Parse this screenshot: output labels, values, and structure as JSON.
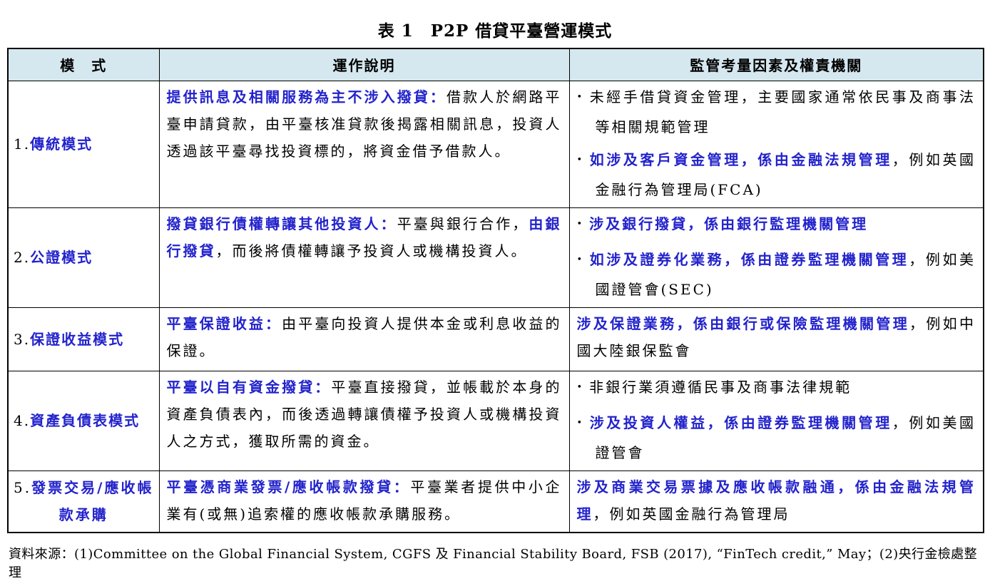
{
  "title": "表 1　P2P 借貸平臺營運模式",
  "bullet_char": "•",
  "colors": {
    "accent_blue": "#2323cc",
    "header_bg": "#d6e8ef",
    "border": "#000000"
  },
  "table": {
    "headers": [
      "模　式",
      "運作說明",
      "監管考量因素及權責機關"
    ],
    "rows": [
      {
        "model_prefix": "1.",
        "model_name": "傳統模式",
        "desc": [
          {
            "t": "提供訊息及相關服務為主不涉入撥貸：",
            "b": true
          },
          {
            "t": "借款人於網路平臺申請貸款，由平臺核准貸款後揭露相關訊息，投資人透過該平臺尋找投資標的，將資金借予借款人。",
            "b": false
          }
        ],
        "reg": [
          {
            "bullet": true,
            "segments": [
              {
                "t": "未經手借貸資金管理，主要國家通常依民事及商事法等相關規範管理",
                "b": false
              }
            ]
          },
          {
            "bullet": true,
            "segments": [
              {
                "t": "如涉及客戶資金管理，係由金融法規管理",
                "b": true
              },
              {
                "t": "，例如英國金融行為管理局(FCA)",
                "b": false
              }
            ]
          }
        ]
      },
      {
        "model_prefix": "2.",
        "model_name": "公證模式",
        "desc": [
          {
            "t": "撥貸銀行債權轉讓其他投資人：",
            "b": true
          },
          {
            "t": "平臺與銀行合作，",
            "b": false
          },
          {
            "t": "由銀行撥貸",
            "b": true
          },
          {
            "t": "，而後將債權轉讓予投資人或機構投資人。",
            "b": false
          }
        ],
        "reg": [
          {
            "bullet": true,
            "segments": [
              {
                "t": "涉及銀行撥貸，係由銀行監理機關管理",
                "b": true
              }
            ]
          },
          {
            "bullet": true,
            "segments": [
              {
                "t": "如涉及證券化業務，係由證券監理機關管理",
                "b": true
              },
              {
                "t": "，例如美國證管會(SEC)",
                "b": false
              }
            ]
          }
        ]
      },
      {
        "model_prefix": "3.",
        "model_name": "保證收益模式",
        "desc": [
          {
            "t": "平臺保證收益：",
            "b": true
          },
          {
            "t": "由平臺向投資人提供本金或利息收益的保證。",
            "b": false
          }
        ],
        "reg": [
          {
            "bullet": false,
            "segments": [
              {
                "t": "涉及保證業務，係由銀行或保險監理機關管理",
                "b": true
              },
              {
                "t": "，例如中國大陸銀保監會",
                "b": false
              }
            ]
          }
        ]
      },
      {
        "model_prefix": "4.",
        "model_name": "資產負債表模式",
        "desc": [
          {
            "t": "平臺以自有資金撥貸：",
            "b": true
          },
          {
            "t": "平臺直接撥貸，並帳載於本身的資產負債表內，而後透過轉讓債權予投資人或機構投資人之方式，獲取所需的資金。",
            "b": false
          }
        ],
        "reg": [
          {
            "bullet": true,
            "segments": [
              {
                "t": "非銀行業須遵循民事及商事法律規範",
                "b": false
              }
            ]
          },
          {
            "bullet": true,
            "segments": [
              {
                "t": "涉及投資人權益，係由證券監理機關管理",
                "b": true
              },
              {
                "t": "，例如美國證管會",
                "b": false
              }
            ]
          }
        ]
      },
      {
        "model_prefix": "5.",
        "model_name": "發票交易/應收帳款承購",
        "desc": [
          {
            "t": "平臺憑商業發票/應收帳款撥貸：",
            "b": true
          },
          {
            "t": "平臺業者提供中小企業有(或無)追索權的應收帳款承購服務。",
            "b": false
          }
        ],
        "reg": [
          {
            "bullet": false,
            "segments": [
              {
                "t": "涉及商業交易票據及應收帳款融通，係由金融法規管理",
                "b": true
              },
              {
                "t": "，例如英國金融行為管理局",
                "b": false
              }
            ]
          }
        ]
      }
    ]
  },
  "footer": "資料來源：(1)Committee on the Global Financial System, CGFS 及 Financial Stability Board, FSB (2017), “FinTech credit,” May；(2)央行金檢處整理"
}
